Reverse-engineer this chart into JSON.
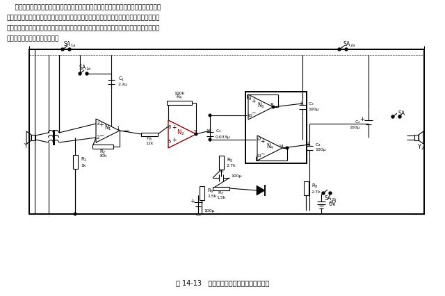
{
  "bg_color": "#ffffff",
  "fig_width": 6.4,
  "fig_height": 4.26,
  "dpi": 100,
  "title_text": "图 14-13   双向呼叫有线对讲电话电路原理图",
  "header_lines": [
    "    有线对讲电话基本上由一个主机和一个副机组成。这种电话的电路虽然简单，但因电源开",
    "关受主机控制，当电源开关断开时，副机便不能主动地向主机呼叫。本文介绍的可双向呼叫的",
    "有线对讲电话仍为主副机结构，连线也只有一对。但主副机均可直接呼叫对方。元器件增加不",
    "多，却能达到事半功倍的效果。"
  ],
  "lc": "#000000",
  "red": "#8B0000",
  "lw": 0.8,
  "lw_thick": 1.4
}
